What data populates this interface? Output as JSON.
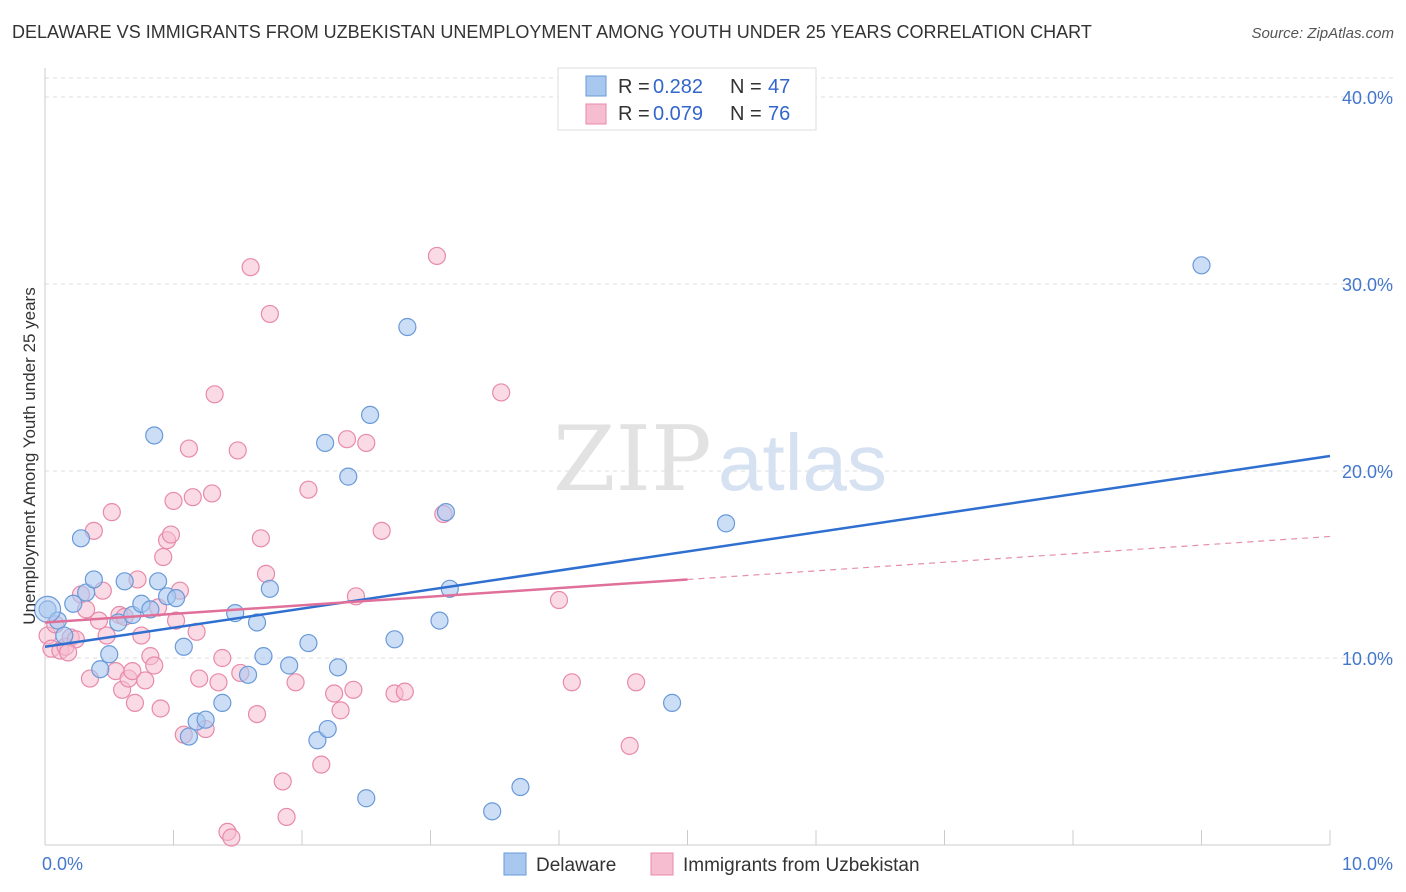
{
  "title": "DELAWARE VS IMMIGRANTS FROM UZBEKISTAN UNEMPLOYMENT AMONG YOUTH UNDER 25 YEARS CORRELATION CHART",
  "source": "Source: ZipAtlas.com",
  "watermark": {
    "zip": "ZIP",
    "atlas": "atlas"
  },
  "legend_top": [
    {
      "r_label": "R = ",
      "r_value": "0.282",
      "n_label": "N = ",
      "n_value": "47"
    },
    {
      "r_label": "R = ",
      "r_value": "0.079",
      "n_label": "N = ",
      "n_value": "76"
    }
  ],
  "legend_bottom": [
    "Delaware",
    "Immigrants from Uzbekistan"
  ],
  "colors": {
    "delaware_fill": "#a9c8f0",
    "delaware_stroke": "#6a9ad8",
    "delaware_line": "#2f6fd0",
    "uzbek_fill": "#f6bcd0",
    "uzbek_stroke": "#e88aaa",
    "uzbek_line": "#e0709a",
    "grid": "#dddddd",
    "tick_text": "#4477cc"
  },
  "chart_data": {
    "type": "scatter",
    "title": "DELAWARE VS IMMIGRANTS FROM UZBEKISTAN UNEMPLOYMENT AMONG YOUTH UNDER 25 YEARS CORRELATION CHART",
    "xlabel": "",
    "ylabel": "Unemployment Among Youth under 25 years",
    "xlim": [
      0,
      10
    ],
    "ylim": [
      0,
      40
    ],
    "x_tick_labels": [
      "0.0%",
      "10.0%"
    ],
    "y_ticks": [
      10,
      20,
      30,
      40
    ],
    "y_tick_labels": [
      "10.0%",
      "20.0%",
      "30.0%",
      "40.0%"
    ],
    "grid": true,
    "legend_placement": "top-center",
    "series": [
      {
        "name": "Delaware",
        "r": 0.282,
        "n": 47,
        "trend": {
          "x": [
            0,
            10
          ],
          "y": [
            10.6,
            20.8
          ]
        },
        "points": [
          [
            0.02,
            12.6
          ],
          [
            0.1,
            12.0
          ],
          [
            0.15,
            11.2
          ],
          [
            0.22,
            12.9
          ],
          [
            0.28,
            16.4
          ],
          [
            0.32,
            13.5
          ],
          [
            0.38,
            14.2
          ],
          [
            0.43,
            9.4
          ],
          [
            0.5,
            10.2
          ],
          [
            0.57,
            11.9
          ],
          [
            0.62,
            14.1
          ],
          [
            0.68,
            12.3
          ],
          [
            0.75,
            12.9
          ],
          [
            0.82,
            12.6
          ],
          [
            0.85,
            21.9
          ],
          [
            0.88,
            14.1
          ],
          [
            0.95,
            13.3
          ],
          [
            1.02,
            13.2
          ],
          [
            1.08,
            10.6
          ],
          [
            1.12,
            5.8
          ],
          [
            1.18,
            6.6
          ],
          [
            1.25,
            6.7
          ],
          [
            1.38,
            7.6
          ],
          [
            1.48,
            12.4
          ],
          [
            1.58,
            9.1
          ],
          [
            1.65,
            11.9
          ],
          [
            1.7,
            10.1
          ],
          [
            1.75,
            13.7
          ],
          [
            1.9,
            9.6
          ],
          [
            2.05,
            10.8
          ],
          [
            2.12,
            5.6
          ],
          [
            2.18,
            21.5
          ],
          [
            2.2,
            6.2
          ],
          [
            2.28,
            9.5
          ],
          [
            2.36,
            19.7
          ],
          [
            2.5,
            2.5
          ],
          [
            2.53,
            23.0
          ],
          [
            2.72,
            11.0
          ],
          [
            2.82,
            27.7
          ],
          [
            3.07,
            12.0
          ],
          [
            3.12,
            17.8
          ],
          [
            3.15,
            13.7
          ],
          [
            3.48,
            1.8
          ],
          [
            3.7,
            3.1
          ],
          [
            4.88,
            7.6
          ],
          [
            5.3,
            17.2
          ],
          [
            9.0,
            31.0
          ]
        ]
      },
      {
        "name": "Immigrants from Uzbekistan",
        "r": 0.079,
        "n": 76,
        "trend": {
          "x": [
            0,
            5.0
          ],
          "y": [
            11.9,
            14.2
          ]
        },
        "trend_extension": {
          "x": [
            5.0,
            10
          ],
          "y": [
            14.2,
            16.5
          ]
        },
        "points": [
          [
            0.02,
            11.2
          ],
          [
            0.05,
            10.5
          ],
          [
            0.08,
            11.8
          ],
          [
            0.12,
            10.4
          ],
          [
            0.16,
            10.6
          ],
          [
            0.2,
            11.1
          ],
          [
            0.24,
            11.0
          ],
          [
            0.28,
            13.4
          ],
          [
            0.32,
            12.6
          ],
          [
            0.35,
            8.9
          ],
          [
            0.38,
            16.8
          ],
          [
            0.42,
            12.0
          ],
          [
            0.45,
            13.6
          ],
          [
            0.48,
            11.2
          ],
          [
            0.52,
            17.8
          ],
          [
            0.55,
            9.3
          ],
          [
            0.58,
            12.3
          ],
          [
            0.6,
            8.3
          ],
          [
            0.62,
            12.2
          ],
          [
            0.65,
            8.9
          ],
          [
            0.68,
            9.3
          ],
          [
            0.7,
            7.6
          ],
          [
            0.72,
            14.2
          ],
          [
            0.75,
            11.2
          ],
          [
            0.78,
            8.8
          ],
          [
            0.82,
            10.1
          ],
          [
            0.85,
            9.6
          ],
          [
            0.88,
            12.7
          ],
          [
            0.9,
            7.3
          ],
          [
            0.92,
            15.4
          ],
          [
            0.95,
            16.3
          ],
          [
            0.98,
            16.6
          ],
          [
            1.0,
            18.4
          ],
          [
            1.02,
            12.0
          ],
          [
            1.05,
            13.6
          ],
          [
            1.08,
            5.9
          ],
          [
            1.12,
            21.2
          ],
          [
            1.15,
            18.6
          ],
          [
            1.18,
            11.4
          ],
          [
            1.2,
            8.9
          ],
          [
            1.25,
            6.2
          ],
          [
            1.3,
            18.8
          ],
          [
            1.32,
            24.1
          ],
          [
            1.35,
            8.7
          ],
          [
            1.38,
            10.0
          ],
          [
            1.42,
            0.7
          ],
          [
            1.45,
            0.4
          ],
          [
            1.5,
            21.1
          ],
          [
            1.52,
            9.2
          ],
          [
            1.6,
            30.9
          ],
          [
            1.65,
            7.0
          ],
          [
            1.68,
            16.4
          ],
          [
            1.72,
            14.5
          ],
          [
            1.75,
            28.4
          ],
          [
            1.85,
            3.4
          ],
          [
            1.88,
            1.5
          ],
          [
            1.95,
            8.7
          ],
          [
            2.05,
            19.0
          ],
          [
            2.15,
            4.3
          ],
          [
            2.25,
            8.1
          ],
          [
            2.3,
            7.2
          ],
          [
            2.35,
            21.7
          ],
          [
            2.4,
            8.3
          ],
          [
            2.42,
            13.3
          ],
          [
            2.5,
            21.5
          ],
          [
            2.62,
            16.8
          ],
          [
            2.72,
            8.1
          ],
          [
            2.8,
            8.2
          ],
          [
            3.05,
            31.5
          ],
          [
            3.1,
            17.7
          ],
          [
            3.55,
            24.2
          ],
          [
            4.0,
            13.1
          ],
          [
            4.1,
            8.7
          ],
          [
            4.55,
            5.3
          ],
          [
            4.6,
            8.7
          ],
          [
            0.18,
            10.3
          ]
        ]
      }
    ]
  }
}
